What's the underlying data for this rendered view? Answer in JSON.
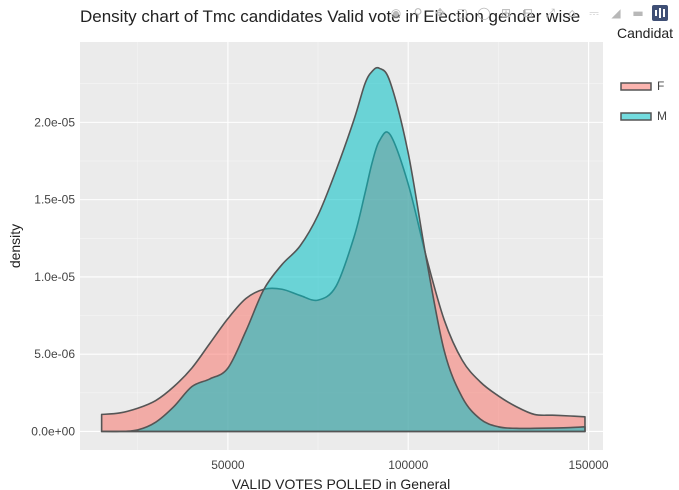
{
  "chart_data": {
    "type": "area",
    "title": "Density chart of Tmc candidates Valid vote in Election gender wise",
    "xlabel": "VALID VOTES POLLED in General",
    "ylabel": "density",
    "xlim": [
      9000,
      154000
    ],
    "ylim": [
      -1.2e-06,
      2.52e-05
    ],
    "x_ticks": [
      50000,
      100000,
      150000
    ],
    "x_tick_labels": [
      "50000",
      "100000",
      "150000"
    ],
    "y_ticks": [
      0,
      5e-06,
      1e-05,
      1.5e-05,
      2e-05
    ],
    "y_tick_labels": [
      "0.0e+00",
      "5.0e-06",
      "1.0e-05",
      "1.5e-05",
      "2.0e-05"
    ],
    "grid": true,
    "legend": {
      "title": "Candidat",
      "placement": "right"
    },
    "series": [
      {
        "name": "F",
        "fill_color": "#F8766D",
        "x": [
          15000,
          20000,
          25000,
          30000,
          35000,
          40000,
          45000,
          50000,
          55000,
          60000,
          65000,
          70000,
          75000,
          80000,
          85000,
          88000,
          90000,
          92000,
          95000,
          100000,
          105000,
          110000,
          115000,
          120000,
          125000,
          130000,
          135000,
          140000,
          145000,
          149000
        ],
        "y": [
          1.1e-06,
          1.2e-06,
          1.5e-06,
          2e-06,
          2.9e-06,
          4.1e-06,
          5.7e-06,
          7.3e-06,
          8.6e-06,
          9.2e-06,
          9.2e-06,
          8.8e-06,
          8.5e-06,
          9.4e-06,
          1.26e-05,
          1.54e-05,
          1.74e-05,
          1.88e-05,
          1.92e-05,
          1.6e-05,
          1.13e-05,
          7.2e-06,
          4.6e-06,
          3.2e-06,
          2.3e-06,
          1.6e-06,
          1.1e-06,
          1.05e-06,
          1e-06,
          9.5e-07
        ]
      },
      {
        "name": "M",
        "fill_color": "#00BFC4",
        "x": [
          15000,
          20000,
          25000,
          30000,
          35000,
          40000,
          45000,
          50000,
          55000,
          60000,
          65000,
          70000,
          75000,
          80000,
          85000,
          88000,
          90000,
          92000,
          95000,
          100000,
          105000,
          110000,
          115000,
          120000,
          125000,
          130000,
          135000,
          140000,
          145000,
          149000
        ],
        "y": [
          0.0,
          0.0,
          1e-07,
          6e-07,
          1.6e-06,
          2.9e-06,
          3.4e-06,
          4.1e-06,
          6.5e-06,
          9.2e-06,
          1.08e-05,
          1.2e-05,
          1.4e-05,
          1.69e-05,
          2.02e-05,
          2.25e-05,
          2.33e-05,
          2.35e-05,
          2.26e-05,
          1.8e-05,
          1.12e-05,
          5.2e-06,
          2.2e-06,
          8e-07,
          3e-07,
          2e-07,
          2e-07,
          2.2e-07,
          2.5e-07,
          3e-07
        ]
      }
    ]
  },
  "modebar": {
    "icons": [
      "camera-icon",
      "zoom-icon",
      "pan-icon",
      "box-select-icon",
      "lasso-icon",
      "zoom-in-icon",
      "zoom-out-icon",
      "autoscale-icon",
      "reset-axes-icon",
      "spike-lines-icon",
      "hover-closest-icon",
      "hover-compare-icon",
      "plotly-logo-icon"
    ]
  }
}
